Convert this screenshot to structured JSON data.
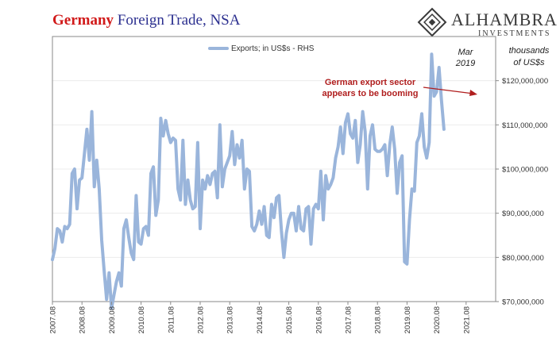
{
  "header": {
    "title_part1": "Germany",
    "title_part2": " Foreign Trade, NSA",
    "logo_name": "ALHAMBRA",
    "logo_sub": "INVESTMENTS"
  },
  "annotations": {
    "units_line1": "thousands",
    "units_line2": "of US$s",
    "marker_line1": "Mar",
    "marker_line2": "2019",
    "callout_line1": "German export sector",
    "callout_line2": "appears to be booming"
  },
  "colors": {
    "title_accent": "#d11a1a",
    "title_main": "#2b2f8f",
    "series": "#9ab5db",
    "callout": "#b01e1e"
  },
  "chart_data": {
    "type": "line",
    "title": "",
    "xlabel": "",
    "ylabel": "",
    "legend": {
      "placement": "top-center",
      "entries": [
        "Exports; in US$s - RHS"
      ]
    },
    "grid": true,
    "y_axis_side": "right",
    "ylim": [
      70000000,
      130000000
    ],
    "yticks": [
      70000000,
      80000000,
      90000000,
      100000000,
      110000000,
      120000000
    ],
    "ytick_labels": [
      "$70,000,000",
      "$80,000,000",
      "$90,000,000",
      "$100,000,000",
      "$110,000,000",
      "$120,000,000"
    ],
    "xticks": [
      "2007-08-01",
      "2008-08-01",
      "2009-08-01",
      "2010-08-01",
      "2011-08-01",
      "2012-08-01",
      "2013-08-01",
      "2014-08-01",
      "2015-08-01",
      "2016-08-01",
      "2017-08-01",
      "2018-08-01",
      "2019-08-01",
      "2020-08-01",
      "2021-08-01"
    ],
    "xtick_labels": [
      "2007.08",
      "2008.08",
      "2009.08",
      "2010.08",
      "2011.08",
      "2012.08",
      "2013.08",
      "2014.08",
      "2015.08",
      "2016.08",
      "2017.08",
      "2018.08",
      "2019.08",
      "2020.08",
      "2021.08"
    ],
    "xlim": [
      "2007-08-01",
      "2022-08-01"
    ],
    "series": [
      {
        "name": "Exports; in US$s - RHS",
        "points": [
          [
            "2007-08-01",
            79500000
          ],
          [
            "2007-09-01",
            82000000
          ],
          [
            "2007-10-01",
            86500000
          ],
          [
            "2007-11-01",
            86000000
          ],
          [
            "2007-12-01",
            83500000
          ],
          [
            "2008-01-01",
            87000000
          ],
          [
            "2008-02-01",
            86500000
          ],
          [
            "2008-03-01",
            87500000
          ],
          [
            "2008-04-01",
            99000000
          ],
          [
            "2008-05-01",
            100000000
          ],
          [
            "2008-06-01",
            91000000
          ],
          [
            "2008-07-01",
            97500000
          ],
          [
            "2008-08-01",
            98000000
          ],
          [
            "2008-09-01",
            103500000
          ],
          [
            "2008-10-01",
            109000000
          ],
          [
            "2008-11-01",
            102000000
          ],
          [
            "2008-12-01",
            113000000
          ],
          [
            "2009-01-01",
            96000000
          ],
          [
            "2009-02-01",
            102000000
          ],
          [
            "2009-03-01",
            95500000
          ],
          [
            "2009-04-01",
            84000000
          ],
          [
            "2009-05-01",
            77000000
          ],
          [
            "2009-06-01",
            70500000
          ],
          [
            "2009-07-01",
            76500000
          ],
          [
            "2009-08-01",
            68500000
          ],
          [
            "2009-09-01",
            71500000
          ],
          [
            "2009-10-01",
            74500000
          ],
          [
            "2009-11-01",
            76500000
          ],
          [
            "2009-12-01",
            73500000
          ],
          [
            "2010-01-01",
            86500000
          ],
          [
            "2010-02-01",
            88500000
          ],
          [
            "2010-03-01",
            84500000
          ],
          [
            "2010-04-01",
            81000000
          ],
          [
            "2010-05-01",
            79500000
          ],
          [
            "2010-06-01",
            94000000
          ],
          [
            "2010-07-01",
            83500000
          ],
          [
            "2010-08-01",
            83000000
          ],
          [
            "2010-09-01",
            86500000
          ],
          [
            "2010-10-01",
            87000000
          ],
          [
            "2010-11-01",
            85000000
          ],
          [
            "2010-12-01",
            99000000
          ],
          [
            "2011-01-01",
            100500000
          ],
          [
            "2011-02-01",
            89500000
          ],
          [
            "2011-03-01",
            93000000
          ],
          [
            "2011-04-01",
            111500000
          ],
          [
            "2011-05-01",
            107500000
          ],
          [
            "2011-06-01",
            111000000
          ],
          [
            "2011-07-01",
            108000000
          ],
          [
            "2011-08-01",
            106000000
          ],
          [
            "2011-09-01",
            107000000
          ],
          [
            "2011-10-01",
            106500000
          ],
          [
            "2011-11-01",
            95500000
          ],
          [
            "2011-12-01",
            93000000
          ],
          [
            "2012-01-01",
            106500000
          ],
          [
            "2012-02-01",
            92000000
          ],
          [
            "2012-03-01",
            97500000
          ],
          [
            "2012-04-01",
            93000000
          ],
          [
            "2012-05-01",
            91000000
          ],
          [
            "2012-06-01",
            91500000
          ],
          [
            "2012-07-01",
            106000000
          ],
          [
            "2012-08-01",
            86500000
          ],
          [
            "2012-09-01",
            97500000
          ],
          [
            "2012-10-01",
            95500000
          ],
          [
            "2012-11-01",
            98500000
          ],
          [
            "2012-12-01",
            96500000
          ],
          [
            "2013-01-01",
            99000000
          ],
          [
            "2013-02-01",
            99500000
          ],
          [
            "2013-03-01",
            93500000
          ],
          [
            "2013-04-01",
            110000000
          ],
          [
            "2013-05-01",
            96000000
          ],
          [
            "2013-06-01",
            100000000
          ],
          [
            "2013-07-01",
            101500000
          ],
          [
            "2013-08-01",
            103000000
          ],
          [
            "2013-09-01",
            108500000
          ],
          [
            "2013-10-01",
            101000000
          ],
          [
            "2013-11-01",
            105500000
          ],
          [
            "2013-12-01",
            102500000
          ],
          [
            "2014-01-01",
            106500000
          ],
          [
            "2014-02-01",
            95500000
          ],
          [
            "2014-03-01",
            100000000
          ],
          [
            "2014-04-01",
            99500000
          ],
          [
            "2014-05-01",
            87000000
          ],
          [
            "2014-06-01",
            86000000
          ],
          [
            "2014-07-01",
            87500000
          ],
          [
            "2014-08-01",
            90500000
          ],
          [
            "2014-09-01",
            87500000
          ],
          [
            "2014-10-01",
            91500000
          ],
          [
            "2014-11-01",
            85000000
          ],
          [
            "2014-12-01",
            84500000
          ],
          [
            "2015-01-01",
            92000000
          ],
          [
            "2015-02-01",
            89000000
          ],
          [
            "2015-03-01",
            93500000
          ],
          [
            "2015-04-01",
            94000000
          ],
          [
            "2015-05-01",
            86000000
          ],
          [
            "2015-06-01",
            80000000
          ],
          [
            "2015-07-01",
            85500000
          ],
          [
            "2015-08-01",
            88500000
          ],
          [
            "2015-09-01",
            90000000
          ],
          [
            "2015-10-01",
            90000000
          ],
          [
            "2015-11-01",
            86000000
          ],
          [
            "2015-12-01",
            91500000
          ],
          [
            "2016-01-01",
            86500000
          ],
          [
            "2016-02-01",
            86000000
          ],
          [
            "2016-03-01",
            91000000
          ],
          [
            "2016-04-01",
            91500000
          ],
          [
            "2016-05-01",
            83000000
          ],
          [
            "2016-06-01",
            91000000
          ],
          [
            "2016-07-01",
            92000000
          ],
          [
            "2016-08-01",
            91000000
          ],
          [
            "2016-09-01",
            99500000
          ],
          [
            "2016-10-01",
            88500000
          ],
          [
            "2016-11-01",
            98500000
          ],
          [
            "2016-12-01",
            95500000
          ],
          [
            "2017-01-01",
            96500000
          ],
          [
            "2017-02-01",
            98000000
          ],
          [
            "2017-03-01",
            102500000
          ],
          [
            "2017-04-01",
            105000000
          ],
          [
            "2017-05-01",
            109500000
          ],
          [
            "2017-06-01",
            103500000
          ],
          [
            "2017-07-01",
            110500000
          ],
          [
            "2017-08-01",
            112500000
          ],
          [
            "2017-09-01",
            108000000
          ],
          [
            "2017-10-01",
            107000000
          ],
          [
            "2017-11-01",
            111000000
          ],
          [
            "2017-12-01",
            101500000
          ],
          [
            "2018-01-01",
            105500000
          ],
          [
            "2018-02-01",
            113000000
          ],
          [
            "2018-03-01",
            108500000
          ],
          [
            "2018-04-01",
            95500000
          ],
          [
            "2018-05-01",
            107500000
          ],
          [
            "2018-06-01",
            110000000
          ],
          [
            "2018-07-01",
            104500000
          ],
          [
            "2018-08-01",
            104000000
          ],
          [
            "2018-09-01",
            104000000
          ],
          [
            "2018-10-01",
            104500000
          ],
          [
            "2018-11-01",
            105500000
          ],
          [
            "2018-12-01",
            98500000
          ],
          [
            "2019-01-01",
            105500000
          ],
          [
            "2019-02-01",
            109500000
          ],
          [
            "2019-03-01",
            104500000
          ],
          [
            "2019-04-01",
            94500000
          ],
          [
            "2019-05-01",
            101500000
          ],
          [
            "2019-06-01",
            103000000
          ],
          [
            "2019-07-01",
            79000000
          ],
          [
            "2019-08-01",
            78500000
          ],
          [
            "2019-09-01",
            88500000
          ],
          [
            "2019-10-01",
            95500000
          ],
          [
            "2019-11-01",
            95000000
          ],
          [
            "2019-12-01",
            106000000
          ],
          [
            "2020-01-01",
            107500000
          ],
          [
            "2020-02-01",
            112500000
          ],
          [
            "2020-03-01",
            105000000
          ],
          [
            "2020-04-01",
            102500000
          ],
          [
            "2020-05-01",
            106000000
          ],
          [
            "2020-06-01",
            126000000
          ],
          [
            "2020-07-01",
            116500000
          ],
          [
            "2020-08-01",
            117500000
          ],
          [
            "2020-09-01",
            123000000
          ],
          [
            "2020-10-01",
            115500000
          ],
          [
            "2020-11-01",
            109000000
          ]
        ]
      }
    ]
  }
}
